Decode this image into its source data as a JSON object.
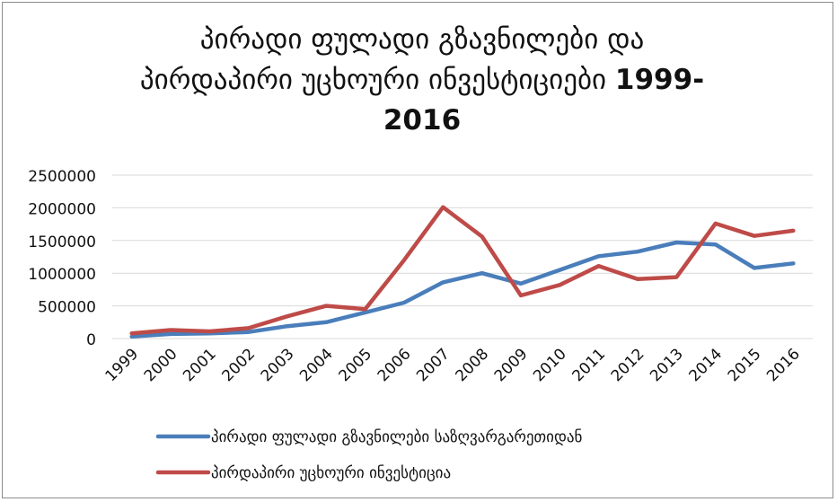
{
  "chart_data": {
    "type": "line",
    "title_line1": "პირადი ფულადი გზავნილები და",
    "title_line2": "პირდაპირი უცხოური ინვესტიციები",
    "title_years_a": "1999-",
    "title_years_b": "2016",
    "categories": [
      "1999",
      "2000",
      "2001",
      "2002",
      "2003",
      "2004",
      "2005",
      "2006",
      "2007",
      "2008",
      "2009",
      "2010",
      "2011",
      "2012",
      "2013",
      "2014",
      "2015",
      "2016"
    ],
    "yticks": [
      "0",
      "500000",
      "1000000",
      "1500000",
      "2000000",
      "2500000"
    ],
    "ylim": [
      0,
      2500000
    ],
    "grid": true,
    "legend_position": "bottom",
    "series": [
      {
        "name": "პირადი ფულადი გზავნილები საზღვარგარეთიდან",
        "color": "#4a7ebb",
        "values": [
          30000,
          70000,
          80000,
          100000,
          190000,
          250000,
          400000,
          550000,
          860000,
          1000000,
          840000,
          1050000,
          1260000,
          1330000,
          1470000,
          1440000,
          1080000,
          1150000
        ]
      },
      {
        "name": "პირდაპირი უცხოური ინვესტიცია",
        "color": "#be4b48",
        "values": [
          80000,
          130000,
          110000,
          160000,
          340000,
          500000,
          450000,
          1200000,
          2010000,
          1560000,
          660000,
          820000,
          1110000,
          910000,
          940000,
          1760000,
          1570000,
          1650000
        ]
      }
    ]
  }
}
